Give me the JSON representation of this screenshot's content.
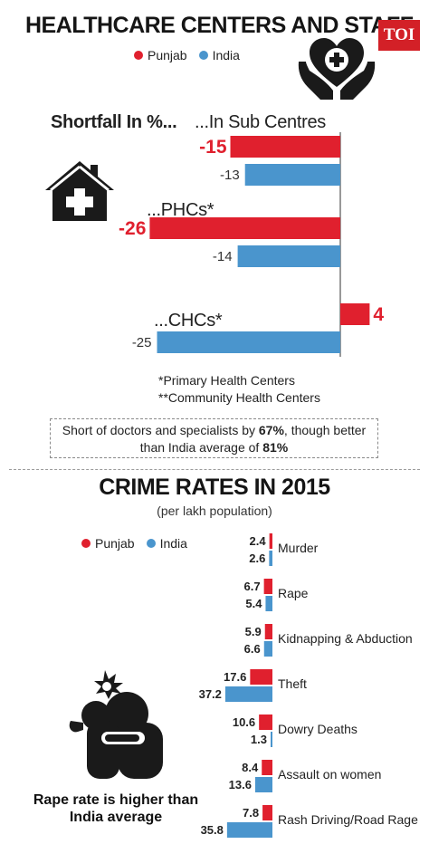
{
  "header": {
    "title": "HEALTHCARE CENTERS AND STAFF",
    "badge": "TOI"
  },
  "colors": {
    "punjab": "#e0202e",
    "india": "#4a95cd",
    "icon": "#1a1a1a"
  },
  "legend": {
    "punjab": "Punjab",
    "india": "India"
  },
  "health": {
    "heading": "Shortfall In %...",
    "notes": [
      "*Primary Health Centers",
      "**Community Health Centers"
    ],
    "summary": {
      "pre": "Short of doctors and specialists by ",
      "v1": "67%",
      "mid": ", though better than India average of ",
      "v2": "81%"
    }
  },
  "crime": {
    "title": "CRIME RATES IN 2015",
    "subtitle": "(per lakh population)",
    "caption": "Rape rate is higher than India average"
  },
  "icons": {
    "house": "medical-house-icon",
    "hands": "hands-heart-cross-icon",
    "victim": "victim-hands-icon"
  },
  "chart_data": [
    {
      "type": "bar",
      "orientation": "horizontal",
      "title": "HEALTHCARE CENTERS AND STAFF",
      "ylabel": "Shortfall In %...",
      "categories": [
        "...In Sub Centres",
        "...PHCs*",
        "...CHCs*"
      ],
      "series": [
        {
          "name": "Punjab",
          "values": [
            -15,
            -26,
            4
          ],
          "labels": [
            "-15",
            "-26",
            "4"
          ]
        },
        {
          "name": "India",
          "values": [
            -13,
            -14,
            -25
          ],
          "labels": [
            "-13",
            "-14",
            "-25"
          ]
        }
      ],
      "xlim": [
        -30,
        5
      ]
    },
    {
      "type": "bar",
      "orientation": "horizontal",
      "title": "CRIME RATES IN 2015",
      "subtitle": "(per lakh population)",
      "categories": [
        "Murder",
        "Rape",
        "Kidnapping & Abduction",
        "Theft",
        "Dowry Deaths",
        "Assault on women",
        "Rash Driving/Road Rage"
      ],
      "series": [
        {
          "name": "Punjab",
          "values": [
            2.4,
            6.7,
            5.9,
            17.6,
            10.6,
            8.4,
            7.8
          ],
          "labels": [
            "2.4",
            "6.7",
            "5.9",
            "17.6",
            "10.6",
            "8.4",
            "7.8"
          ]
        },
        {
          "name": "India",
          "values": [
            2.6,
            5.4,
            6.6,
            37.2,
            1.3,
            13.6,
            35.8
          ],
          "labels": [
            "2.6",
            "5.4",
            "6.6",
            "37.2",
            "1.3",
            "13.6",
            "35.8"
          ]
        }
      ]
    }
  ]
}
